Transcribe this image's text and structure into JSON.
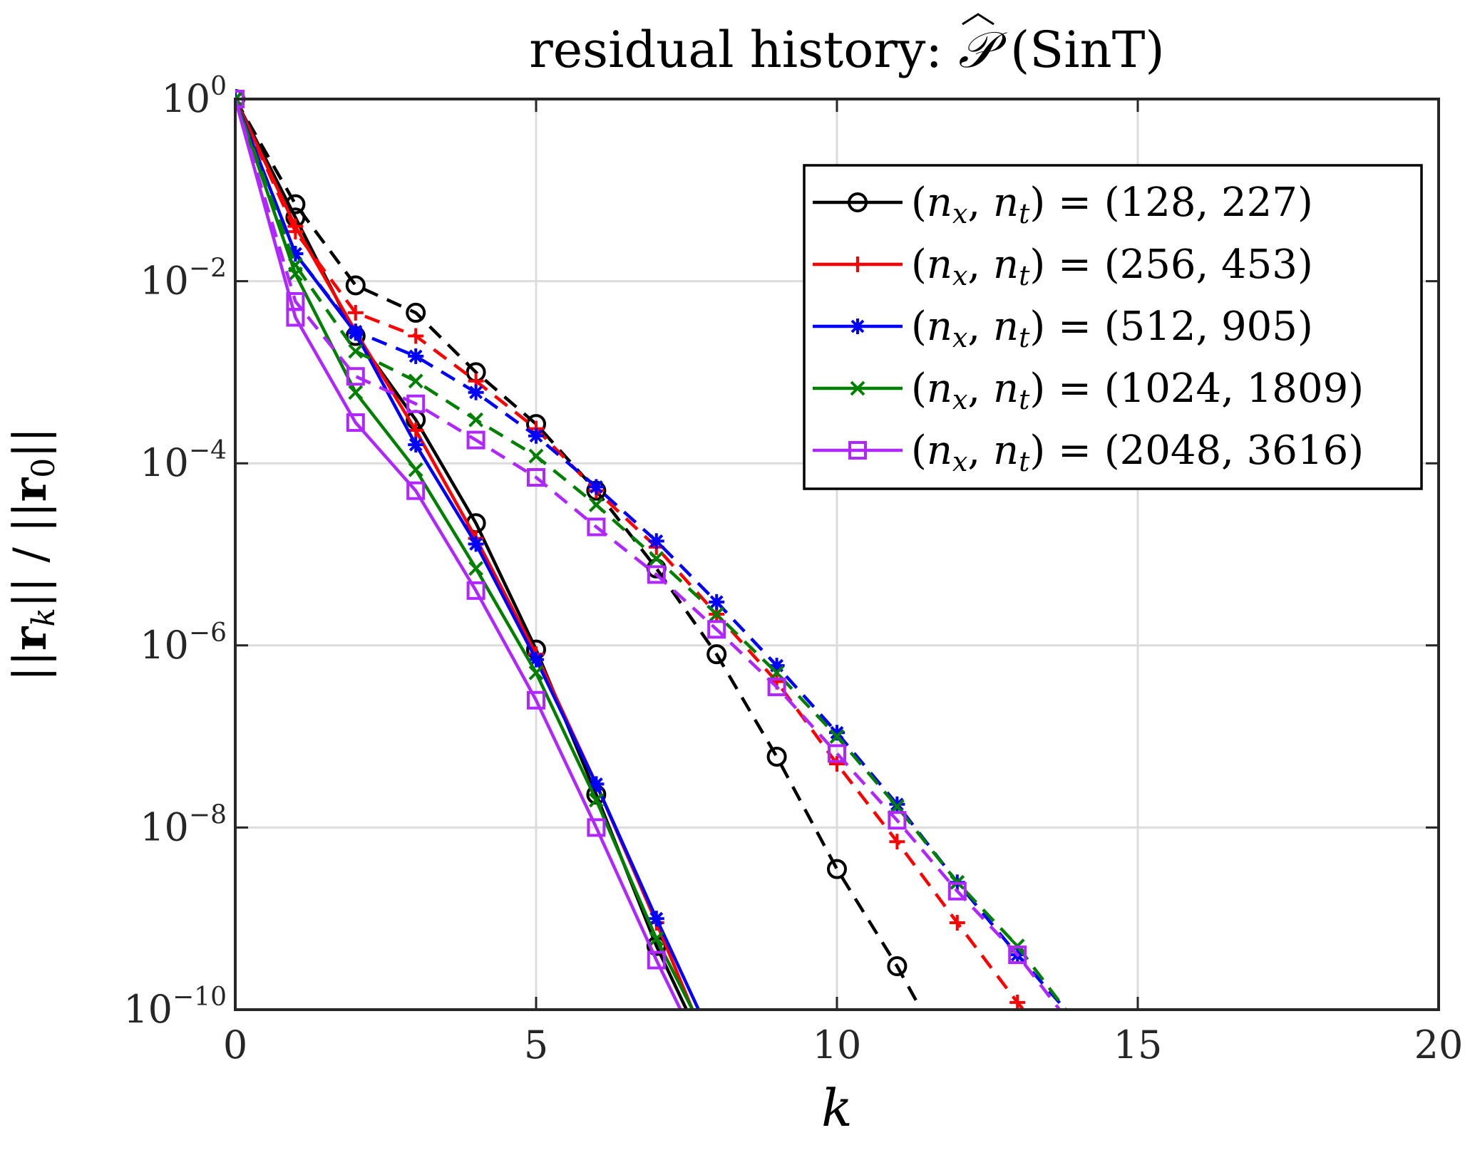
{
  "chart_data": {
    "type": "line",
    "title_parts": {
      "prefix": "residual history:",
      "symbol": "𝒫",
      "suffix": "(SinT)"
    },
    "xlabel": "k",
    "ylabel": "||r_k|| / ||r_0||",
    "xlim": [
      0,
      20
    ],
    "ylim": [
      1e-10,
      1
    ],
    "yscale": "log",
    "grid": true,
    "legend_position": "top-right",
    "xticks": [
      0,
      5,
      10,
      15,
      20
    ],
    "xtick_labels": [
      "0",
      "5",
      "10",
      "15",
      "20"
    ],
    "yticks": [
      1,
      0.01,
      0.0001,
      1e-06,
      1e-08,
      1e-10
    ],
    "ytick_labels": [
      {
        "base": "10",
        "exp": "0"
      },
      {
        "base": "10",
        "exp": "−2"
      },
      {
        "base": "10",
        "exp": "−4"
      },
      {
        "base": "10",
        "exp": "−6"
      },
      {
        "base": "10",
        "exp": "−8"
      },
      {
        "base": "10",
        "exp": "−10"
      }
    ],
    "series": [
      {
        "name": "(nx, nt) = (128, 227)",
        "legend_text": "(128, 227)",
        "color": "#000000",
        "marker": "circle",
        "linestyle": "solid",
        "x": [
          0,
          1,
          2,
          3,
          4,
          5,
          6,
          7,
          7.5
        ],
        "y": [
          1,
          0.05,
          0.0025,
          0.0003,
          2.2e-05,
          9e-07,
          2.3e-08,
          5e-10,
          1e-10
        ]
      },
      {
        "name": "(nx, nt) = (128, 227)",
        "color": "#000000",
        "marker": "circle",
        "linestyle": "dashed",
        "x": [
          0,
          1,
          2,
          3,
          4,
          5,
          6,
          7,
          8,
          9,
          10,
          11,
          11.4
        ],
        "y": [
          1,
          0.07,
          0.009,
          0.0045,
          0.001,
          0.00027,
          5e-05,
          7e-06,
          8e-07,
          6e-08,
          3.5e-09,
          3e-10,
          1e-10
        ]
      },
      {
        "name": "(nx, nt) = (256, 453)",
        "legend_text": "(256, 453)",
        "color": "#ff0000",
        "marker": "plus",
        "linestyle": "solid",
        "x": [
          0,
          1,
          2,
          3,
          4,
          5,
          6,
          7,
          7.6
        ],
        "y": [
          1,
          0.04,
          0.0028,
          0.00023,
          1.5e-05,
          8e-07,
          3e-08,
          9e-10,
          1e-10
        ]
      },
      {
        "name": "(nx, nt) = (256, 453)",
        "color": "#ff0000",
        "marker": "plus",
        "linestyle": "dashed",
        "x": [
          0,
          1,
          2,
          3,
          4,
          5,
          6,
          7,
          8,
          9,
          10,
          11,
          12,
          13,
          13.1
        ],
        "y": [
          1,
          0.035,
          0.0045,
          0.0025,
          0.0008,
          0.00024,
          5e-05,
          1.2e-05,
          2.2e-06,
          4e-07,
          5e-08,
          7e-09,
          9e-10,
          1.2e-10,
          1e-10
        ]
      },
      {
        "name": "(nx, nt) = (512, 905)",
        "legend_text": "(512, 905)",
        "color": "#0000ff",
        "marker": "star",
        "linestyle": "solid",
        "x": [
          0,
          1,
          2,
          3,
          4,
          5,
          6,
          7,
          7.7
        ],
        "y": [
          1,
          0.02,
          0.0027,
          0.00016,
          1.3e-05,
          7e-07,
          3e-08,
          1e-09,
          1e-10
        ]
      },
      {
        "name": "(nx, nt) = (512, 905)",
        "color": "#0000ff",
        "marker": "star",
        "linestyle": "dashed",
        "x": [
          0,
          1,
          2,
          3,
          4,
          5,
          6,
          7,
          8,
          9,
          10,
          11,
          12,
          13,
          13.8
        ],
        "y": [
          1,
          0.02,
          0.0028,
          0.0015,
          0.0006,
          0.0002,
          5.5e-05,
          1.4e-05,
          3e-06,
          6e-07,
          1.1e-07,
          1.8e-08,
          2.5e-09,
          4e-10,
          1e-10
        ]
      },
      {
        "name": "(nx, nt) = (1024, 1809)",
        "legend_text": "(1024, 1809)",
        "color": "#008000",
        "marker": "x",
        "linestyle": "solid",
        "x": [
          0,
          1,
          2,
          3,
          4,
          5,
          6,
          7,
          7.6
        ],
        "y": [
          1,
          0.012,
          0.0006,
          8.5e-05,
          7e-06,
          5e-07,
          2e-08,
          6e-10,
          1e-10
        ]
      },
      {
        "name": "(nx, nt) = (1024, 1809)",
        "color": "#008000",
        "marker": "x",
        "linestyle": "dashed",
        "x": [
          0,
          1,
          2,
          3,
          4,
          5,
          6,
          7,
          8,
          9,
          10,
          11,
          12,
          13,
          13.8
        ],
        "y": [
          1,
          0.015,
          0.0017,
          0.0008,
          0.0003,
          0.00012,
          3.5e-05,
          9e-06,
          2.2e-06,
          5e-07,
          1e-07,
          1.7e-08,
          2.5e-09,
          5e-10,
          1e-10
        ]
      },
      {
        "name": "(nx, nt) = (2048, 3616)",
        "legend_text": "(2048, 3616)",
        "color": "#b026ff",
        "marker": "square",
        "linestyle": "solid",
        "x": [
          0,
          1,
          2,
          3,
          4,
          5,
          6,
          7,
          7.4
        ],
        "y": [
          1,
          0.004,
          0.00028,
          5e-05,
          4e-06,
          2.5e-07,
          1e-08,
          3.5e-10,
          1e-10
        ]
      },
      {
        "name": "(nx, nt) = (2048, 3616)",
        "color": "#b026ff",
        "marker": "square",
        "linestyle": "dashed",
        "x": [
          0,
          1,
          2,
          3,
          4,
          5,
          6,
          7,
          8,
          9,
          10,
          11,
          12,
          13,
          13.7
        ],
        "y": [
          1,
          0.006,
          0.0009,
          0.00045,
          0.00018,
          7e-05,
          2e-05,
          6e-06,
          1.5e-06,
          3.5e-07,
          6.5e-08,
          1.2e-08,
          2e-09,
          4e-10,
          1e-10
        ]
      }
    ]
  }
}
